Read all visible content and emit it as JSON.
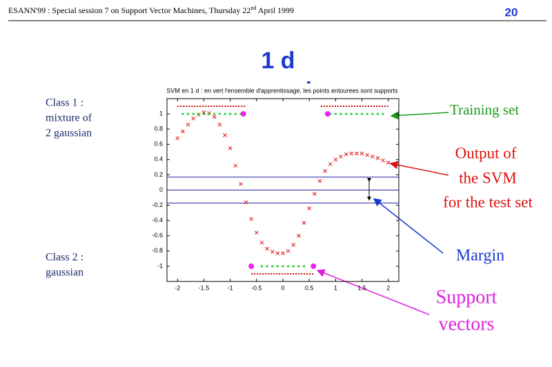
{
  "header": {
    "text": "ESANN'99 :  Special session 7 on Support Vector Machines, Thursday 22",
    "sup": "nd",
    "tail": " April 1999",
    "page": "20"
  },
  "slide_title": [
    "1 d",
    "example"
  ],
  "labels": {
    "class1": [
      "Class 1 :",
      "mixture of",
      "2 gaussian"
    ],
    "class2": [
      "Class 2 :",
      "gaussian"
    ],
    "training_set": [
      "Training set"
    ],
    "output": [
      "Output of",
      "the SVM",
      "for the test set"
    ],
    "margin": [
      "Margin"
    ],
    "support": [
      "Support",
      "vectors"
    ]
  },
  "chart_data": {
    "type": "scatter",
    "title": "SVM en 1 d : en vert l'ensemble d'apprentissage, les points entourees sont supports",
    "xlim": [
      -2.2,
      2.2
    ],
    "ylim": [
      -1.2,
      1.2
    ],
    "xticks": [
      -2,
      -1.5,
      -1,
      -0.5,
      0,
      0.5,
      1,
      1.5,
      2
    ],
    "yticks": [
      -1,
      -0.8,
      -0.6,
      -0.4,
      -0.2,
      0,
      0.2,
      0.4,
      0.6,
      0.8,
      1
    ],
    "series": [
      {
        "marker": "x",
        "color": "#dd1111",
        "x": [
          -2,
          -1.9,
          -1.8,
          -1.7,
          -1.6,
          -1.5,
          -1.4,
          -1.3,
          -1.2,
          -1.1,
          -1,
          -0.9,
          -0.8,
          -0.7,
          -0.6,
          -0.5,
          -0.4,
          -0.3,
          -0.2,
          -0.1,
          0,
          0.1,
          0.2,
          0.3,
          0.4,
          0.5,
          0.6,
          0.7,
          0.8,
          0.9,
          1,
          1.1,
          1.2,
          1.3,
          1.4,
          1.5,
          1.6,
          1.7,
          1.8,
          1.9,
          2
        ],
        "values": [
          0.68,
          0.77,
          0.86,
          0.94,
          0.99,
          1.02,
          1.01,
          0.96,
          0.86,
          0.72,
          0.55,
          0.32,
          0.08,
          -0.16,
          -0.38,
          -0.56,
          -0.69,
          -0.77,
          -0.81,
          -0.83,
          -0.83,
          -0.8,
          -0.72,
          -0.6,
          -0.43,
          -0.24,
          -0.05,
          0.12,
          0.25,
          0.34,
          0.4,
          0.44,
          0.47,
          0.48,
          0.48,
          0.48,
          0.46,
          0.44,
          0.42,
          0.39,
          0.36
        ]
      },
      {
        "marker": "dot",
        "color": "#22cc22",
        "x": [
          -1.9,
          -1.8,
          -1.7,
          -1.6,
          -1.5,
          -1.4,
          -1.3,
          -1.2,
          -1.1,
          -1,
          -0.9,
          -0.8,
          0.9,
          1,
          1.1,
          1.2,
          1.3,
          1.4,
          1.5,
          1.6,
          1.7,
          1.8,
          1.9,
          -0.4,
          -0.3,
          -0.2,
          -0.1,
          0,
          0.1,
          0.2,
          0.3,
          0.4
        ],
        "values": [
          1,
          1,
          1,
          1,
          1,
          1,
          1,
          1,
          1,
          1,
          1,
          1,
          1,
          1,
          1,
          1,
          1,
          1,
          1,
          1,
          1,
          1,
          1,
          -1,
          -1,
          -1,
          -1,
          -1,
          -1,
          -1,
          -1,
          -1
        ]
      },
      {
        "marker": "circle",
        "color": "#ee22ee",
        "x": [
          -0.75,
          0.85,
          -0.6,
          0.58
        ],
        "values": [
          1,
          1,
          -1,
          -1
        ]
      }
    ],
    "hlines": [
      {
        "y": 0.17
      },
      {
        "y": 0
      },
      {
        "y": -0.17
      }
    ],
    "hline_color": "#1c1ca8",
    "dotted": [
      {
        "x": [
          -2,
          -0.7
        ],
        "y": 1.1
      },
      {
        "x": [
          0.72,
          2
        ],
        "y": 1.1
      },
      {
        "x": [
          -0.6,
          0.6
        ],
        "y": -1.1
      }
    ],
    "dotted_color": "#cc0000"
  }
}
